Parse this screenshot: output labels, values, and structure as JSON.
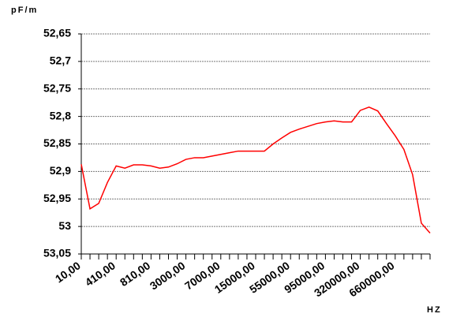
{
  "chart_data": {
    "type": "line",
    "y_unit_label": "pF/m",
    "x_unit_label": "HZ",
    "categories": [
      "10,00",
      null,
      null,
      null,
      "410,00",
      null,
      null,
      null,
      "810,00",
      null,
      null,
      null,
      "3000,00",
      null,
      null,
      null,
      "7000,00",
      null,
      null,
      null,
      "15000,00",
      null,
      null,
      null,
      "55000,00",
      null,
      null,
      null,
      "95000,00",
      null,
      null,
      null,
      "320000,00",
      null,
      null,
      null,
      "660000,00",
      null,
      null,
      null,
      null
    ],
    "series": [
      {
        "name": "pF/m",
        "color": "#ff0000",
        "values": [
          52.887,
          52.968,
          52.958,
          52.92,
          52.89,
          52.894,
          52.888,
          52.888,
          52.89,
          52.894,
          52.892,
          52.886,
          52.878,
          52.875,
          52.875,
          52.872,
          52.869,
          52.866,
          52.863,
          52.863,
          52.863,
          52.863,
          52.85,
          52.839,
          52.829,
          52.823,
          52.818,
          52.813,
          52.81,
          52.808,
          52.81,
          52.81,
          52.789,
          52.783,
          52.79,
          52.813,
          52.835,
          52.86,
          52.906,
          52.994,
          53.012
        ]
      }
    ],
    "ylim": [
      52.65,
      53.05
    ],
    "y_reversed": true,
    "yticks": [
      {
        "value": 52.65,
        "label": "52,65"
      },
      {
        "value": 52.7,
        "label": "52,7"
      },
      {
        "value": 52.75,
        "label": "52,75"
      },
      {
        "value": 52.8,
        "label": "52,8"
      },
      {
        "value": 52.85,
        "label": "52,85"
      },
      {
        "value": 52.9,
        "label": "52,9"
      },
      {
        "value": 52.95,
        "label": "52,95"
      },
      {
        "value": 53,
        "label": "53"
      },
      {
        "value": 53.05,
        "label": "53,05"
      }
    ],
    "grid": true
  }
}
